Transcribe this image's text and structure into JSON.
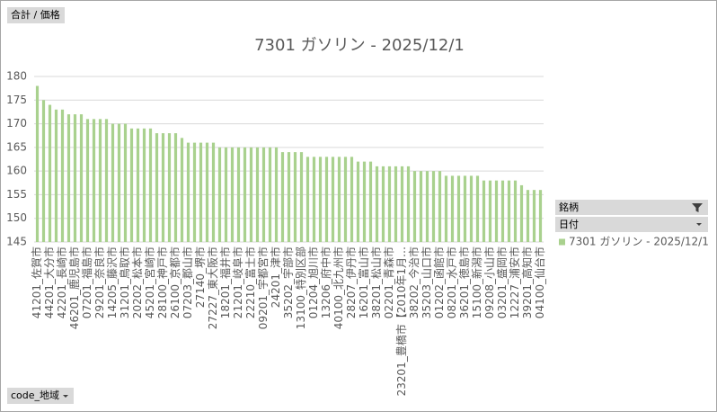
{
  "chart_data": {
    "type": "bar",
    "title": "7301 ガソリン - 2025/12/1",
    "categories": [
      "41201_佐賀市",
      null,
      "44201_大分市",
      null,
      "42201_長崎市",
      null,
      "46201_鹿児島市",
      null,
      "07201_福島市",
      null,
      "29201_奈良市",
      null,
      "14205_藤沢市",
      null,
      "31201_鳥取市",
      null,
      "20202_松本市",
      null,
      "45201_宮崎市",
      null,
      "28100_神戸市",
      null,
      "26100_京都市",
      null,
      "07203_郡山市",
      null,
      "27140_堺市",
      null,
      "27227_東大阪市",
      null,
      "18201_福井市",
      null,
      "21201_岐阜市",
      null,
      "22210_富士市",
      null,
      "09201_宇都宮市",
      null,
      "24201_津市",
      null,
      "35202_宇部市",
      null,
      "13100_特別区部",
      null,
      "01204_旭川市",
      null,
      "13206_府中市",
      null,
      "40100_北九州市",
      null,
      "28207_伊丹市",
      null,
      "16201_富山市",
      null,
      "38201_松山市",
      null,
      "02201_青森市",
      null,
      "23201_豊橋市【2010年1月…",
      null,
      "38202_今治市",
      null,
      "35203_山口市",
      null,
      "01202_函館市",
      null,
      "08201_水戸市",
      null,
      "36201_徳島市",
      null,
      "15100_新潟市",
      null,
      "09208_小山市",
      null,
      "03201_盛岡市",
      null,
      "12227_浦安市",
      null,
      "39201_高知市",
      null,
      "04100_仙台市"
    ],
    "series": [
      {
        "name": "7301 ガソリン - 2025/12/1",
        "color": "#a9d18e",
        "values": [
          178,
          175,
          174,
          173,
          173,
          172,
          172,
          172,
          171,
          171,
          171,
          171,
          170,
          170,
          170,
          169,
          169,
          169,
          169,
          168,
          168,
          168,
          168,
          167,
          166,
          166,
          166,
          166,
          166,
          165,
          165,
          165,
          165,
          165,
          165,
          165,
          165,
          165,
          165,
          164,
          164,
          164,
          164,
          163,
          163,
          163,
          163,
          163,
          163,
          163,
          163,
          162,
          162,
          162,
          161,
          161,
          161,
          161,
          161,
          161,
          160,
          160,
          160,
          160,
          160,
          159,
          159,
          159,
          159,
          159,
          159,
          158,
          158,
          158,
          158,
          158,
          158,
          157,
          156,
          156,
          156
        ]
      }
    ],
    "ylim": [
      145,
      180
    ],
    "yticks": [
      145,
      150,
      155,
      160,
      165,
      170,
      175,
      180
    ],
    "grid": true
  },
  "pivot_fields": {
    "values": "合計 / 価格",
    "legend": [
      "銘柄",
      "日付"
    ],
    "axis": "code_地域"
  }
}
